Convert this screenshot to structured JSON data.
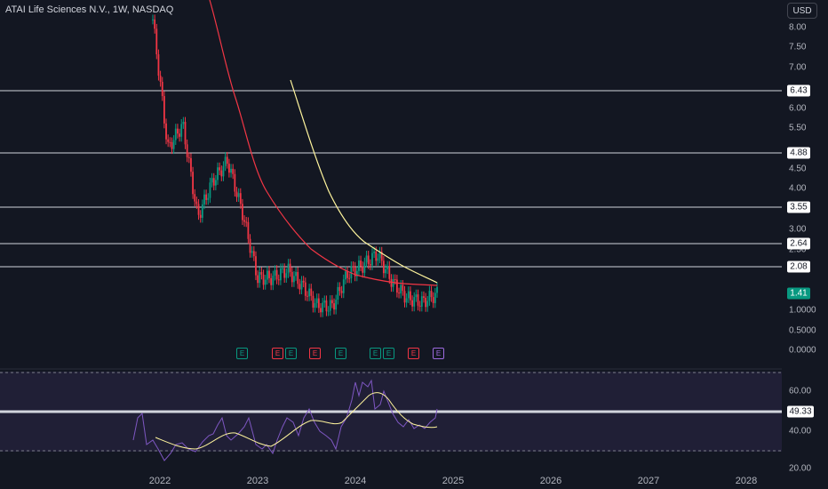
{
  "header": {
    "title": "ATAI Life Sciences N.V., 1W, NASDAQ",
    "currency": "USD"
  },
  "price_axis": {
    "ticks": [
      "8.00",
      "7.50",
      "7.00",
      "6.00",
      "5.50",
      "4.50",
      "4.00",
      "3.00",
      "2.50",
      "1.0000",
      "0.5000",
      "0.0000"
    ]
  },
  "levels": [
    "6.43",
    "4.88",
    "3.55",
    "2.64",
    "2.08"
  ],
  "current_price": "1.41",
  "rsi": {
    "value": "49.33",
    "ticks": [
      "60.00",
      "40.00",
      "20.00"
    ]
  },
  "time_axis": [
    "2022",
    "2023",
    "2024",
    "2025",
    "2026",
    "2027",
    "2028"
  ],
  "earnings": [
    {
      "label": "E",
      "kind": "green"
    },
    {
      "label": "E",
      "kind": "red"
    },
    {
      "label": "E",
      "kind": "green"
    },
    {
      "label": "E",
      "kind": "red"
    },
    {
      "label": "E",
      "kind": "green"
    },
    {
      "label": "E",
      "kind": "green"
    },
    {
      "label": "E",
      "kind": "green"
    },
    {
      "label": "E",
      "kind": "red"
    },
    {
      "label": "E",
      "kind": "purple"
    }
  ],
  "chart_data": {
    "type": "line",
    "price_close_approx": {
      "x": [
        "2021-12",
        "2022-01",
        "2022-03",
        "2022-05",
        "2022-07",
        "2022-09",
        "2022-11",
        "2023-01",
        "2023-03",
        "2023-05",
        "2023-07",
        "2023-09",
        "2023-11",
        "2024-01",
        "2024-03",
        "2024-04",
        "2024-06",
        "2024-08",
        "2024-10",
        "2024-11"
      ],
      "values": [
        8.2,
        5.0,
        5.6,
        3.3,
        4.2,
        4.7,
        3.4,
        1.8,
        1.8,
        2.0,
        1.6,
        1.1,
        1.1,
        1.9,
        2.1,
        2.4,
        1.7,
        1.3,
        1.2,
        1.41
      ]
    },
    "horizontal_levels": [
      6.43,
      4.88,
      3.55,
      2.64,
      2.08
    ],
    "colors": {
      "up": "#089981",
      "down": "#f23645",
      "ma_fast": "#f23645",
      "ma_slow": "#fff59d",
      "rsi": "#7e57c2",
      "rsi_ma": "#fff59d"
    }
  }
}
